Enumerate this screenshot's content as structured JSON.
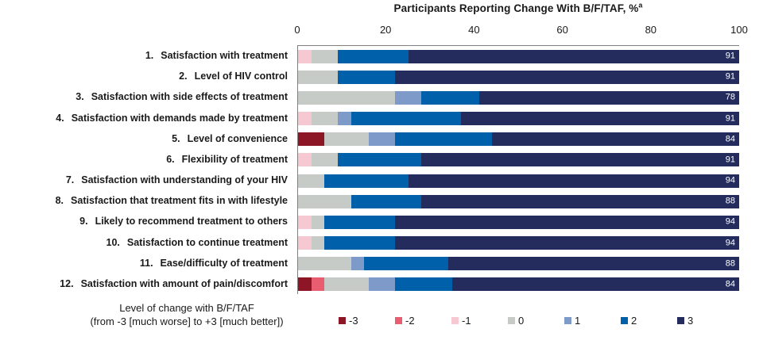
{
  "chart_data": {
    "type": "bar",
    "variant": "horizontal-stacked",
    "title": "Participants Reporting Change With B/F/TAF, %",
    "title_superscript": "a",
    "xlabel": "",
    "ylabel": "",
    "axis_range": [
      0,
      100
    ],
    "x_ticks": [
      0,
      20,
      40,
      60,
      80,
      100
    ],
    "grid": false,
    "legend_position": "bottom",
    "legend_caption_line1": "Level of change with B/F/TAF",
    "legend_caption_line2": "(from -3 [much worse] to +3 [much better])",
    "levels": [
      {
        "label": "-3",
        "color": "#8C1626"
      },
      {
        "label": "-2",
        "color": "#E85D70"
      },
      {
        "label": "-1",
        "color": "#F6C9D2"
      },
      {
        "label": "0",
        "color": "#C7CBC7"
      },
      {
        "label": "1",
        "color": "#7E9AC8"
      },
      {
        "label": "2",
        "color": "#0060A9"
      },
      {
        "label": "3",
        "color": "#232C5C"
      }
    ],
    "rows": [
      {
        "number": "1.",
        "label": "Satisfaction with treatment",
        "values": [
          0,
          0,
          3,
          6,
          0,
          16,
          75
        ],
        "end_label": "91"
      },
      {
        "number": "2.",
        "label": "Level of HIV control",
        "values": [
          0,
          0,
          0,
          9,
          0,
          13,
          78
        ],
        "end_label": "91"
      },
      {
        "number": "3.",
        "label": "Satisfaction with side effects of treatment",
        "values": [
          0,
          0,
          0,
          22,
          6,
          13,
          59
        ],
        "end_label": "78"
      },
      {
        "number": "4.",
        "label": "Satisfaction with demands made by treatment",
        "values": [
          0,
          0,
          3,
          6,
          3,
          25,
          63
        ],
        "end_label": "91"
      },
      {
        "number": "5.",
        "label": "Level of convenience",
        "values": [
          6,
          0,
          0,
          10,
          6,
          22,
          56
        ],
        "end_label": "84"
      },
      {
        "number": "6.",
        "label": "Flexibility of treatment",
        "values": [
          0,
          0,
          3,
          6,
          0,
          19,
          72
        ],
        "end_label": "91"
      },
      {
        "number": "7.",
        "label": "Satisfaction with understanding of your HIV",
        "values": [
          0,
          0,
          0,
          6,
          0,
          19,
          75
        ],
        "end_label": "94"
      },
      {
        "number": "8.",
        "label": "Satisfaction that treatment fits in with lifestyle",
        "values": [
          0,
          0,
          0,
          12,
          0,
          16,
          72
        ],
        "end_label": "88"
      },
      {
        "number": "9.",
        "label": "Likely to recommend treatment to others",
        "values": [
          0,
          0,
          3,
          3,
          0,
          16,
          78
        ],
        "end_label": "94"
      },
      {
        "number": "10.",
        "label": "Satisfaction to continue treatment",
        "values": [
          0,
          0,
          3,
          3,
          0,
          16,
          78
        ],
        "end_label": "94"
      },
      {
        "number": "11.",
        "label": "Ease/difficulty of treatment",
        "values": [
          0,
          0,
          0,
          12,
          3,
          19,
          66
        ],
        "end_label": "88"
      },
      {
        "number": "12.",
        "label": "Satisfaction with amount of pain/discomfort",
        "values": [
          3,
          3,
          0,
          10,
          6,
          13,
          65
        ],
        "end_label": "84"
      }
    ]
  },
  "colors": {
    "axis_line": "#7f7f7f",
    "bar_value_text": "#ffffff",
    "text": "#1a1a1a"
  }
}
